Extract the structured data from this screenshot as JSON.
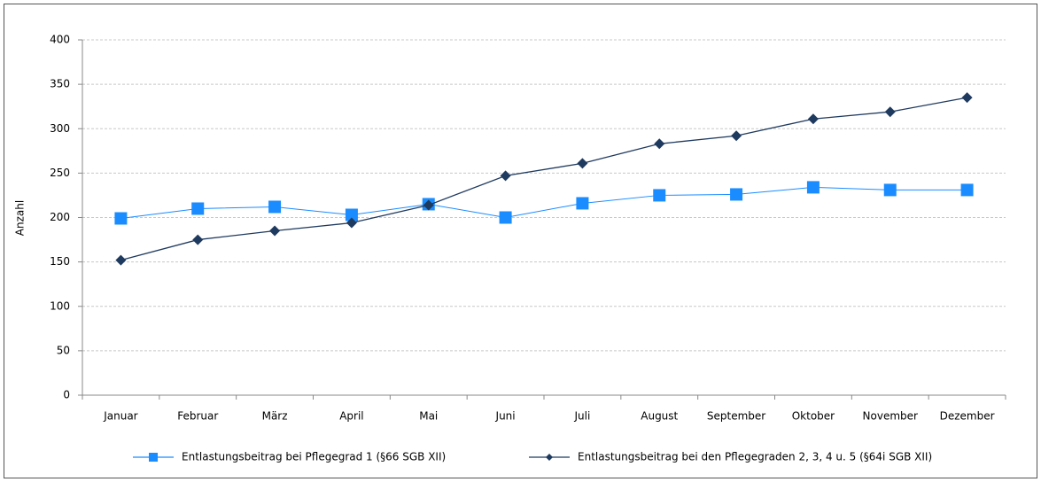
{
  "chart_data": {
    "type": "line",
    "y_label": "Anzahl",
    "categories": [
      "Januar",
      "Februar",
      "März",
      "April",
      "Mai",
      "Juni",
      "Juli",
      "August",
      "September",
      "Oktober",
      "November",
      "Dezember"
    ],
    "series": [
      {
        "name": "Entlastungsbeitrag bei Pflegegrad 1 (§66 SGB XII)",
        "color": "#1a8cff",
        "marker": "square",
        "values": [
          199,
          210,
          212,
          203,
          215,
          200,
          216,
          225,
          226,
          234,
          231,
          231
        ]
      },
      {
        "name": "Entlastungsbeitrag bei den Pflegegraden 2, 3, 4 u. 5 (§64i SGB XII)",
        "color": "#1f3a5f",
        "marker": "diamond",
        "values": [
          152,
          175,
          185,
          194,
          214,
          247,
          261,
          283,
          292,
          311,
          319,
          335
        ]
      }
    ],
    "ylim": [
      0,
      400
    ],
    "yticks": [
      0,
      50,
      100,
      150,
      200,
      250,
      300,
      350,
      400
    ],
    "grid": true,
    "legend": "bottom"
  }
}
